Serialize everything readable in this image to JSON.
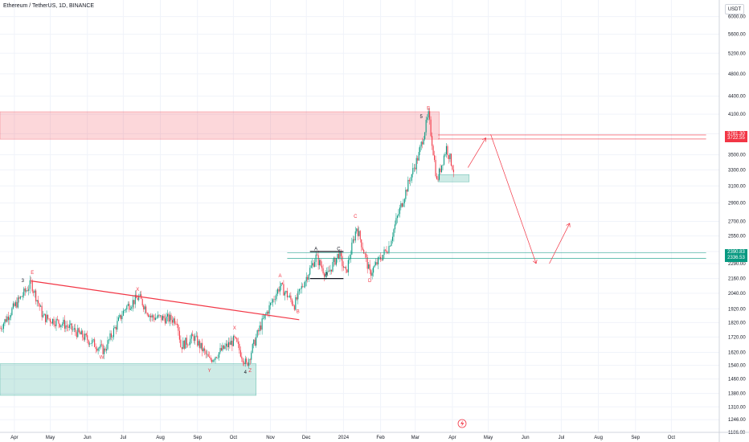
{
  "header": {
    "title": "Ethereum / TetherUS, 1D, BINANCE",
    "unit_label": "USDT"
  },
  "chart_data": {
    "type": "candlestick",
    "title": "Ethereum / TetherUS, 1D, BINANCE",
    "y_scale": "log",
    "ylim": [
      1186,
      6400
    ],
    "price_ticks": [
      "6000.00",
      "5600.00",
      "5200.00",
      "4800.00",
      "4400.00",
      "4100.00",
      "3800.00",
      "3500.00",
      "3300.00",
      "3100.00",
      "2900.00",
      "2700.00",
      "2550.00",
      "2400.00",
      "2290.00",
      "2160.00",
      "2040.00",
      "1920.00",
      "1820.00",
      "1720.00",
      "1620.00",
      "1540.00",
      "1460.00",
      "1380.00",
      "1310.00",
      "1246.00",
      "1186.00"
    ],
    "x_ticks": [
      {
        "label": "Apr",
        "date": "2023-04-01"
      },
      {
        "label": "May",
        "date": "2023-05-01"
      },
      {
        "label": "Jun",
        "date": "2023-06-01"
      },
      {
        "label": "Jul",
        "date": "2023-07-01"
      },
      {
        "label": "Aug",
        "date": "2023-08-01"
      },
      {
        "label": "Sep",
        "date": "2023-09-01"
      },
      {
        "label": "Oct",
        "date": "2023-10-01"
      },
      {
        "label": "Nov",
        "date": "2023-11-01"
      },
      {
        "label": "Dec",
        "date": "2023-12-01"
      },
      {
        "label": "2024",
        "date": "2024-01-01"
      },
      {
        "label": "Feb",
        "date": "2024-02-01"
      },
      {
        "label": "Mar",
        "date": "2024-03-01"
      },
      {
        "label": "Apr",
        "date": "2024-04-01"
      },
      {
        "label": "May",
        "date": "2024-05-01"
      },
      {
        "label": "Jun",
        "date": "2024-06-01"
      },
      {
        "label": "Jul",
        "date": "2024-07-01"
      },
      {
        "label": "Aug",
        "date": "2024-08-01"
      },
      {
        "label": "Sep",
        "date": "2024-09-01"
      },
      {
        "label": "Oct",
        "date": "2024-10-01"
      }
    ],
    "series": [
      {
        "key_points": [
          {
            "date": "2023-03-20",
            "price": 1780
          },
          {
            "date": "2023-04-15",
            "price": 2120
          },
          {
            "date": "2023-04-25",
            "price": 1860
          },
          {
            "date": "2023-05-12",
            "price": 1810
          },
          {
            "date": "2023-06-15",
            "price": 1630
          },
          {
            "date": "2023-07-03",
            "price": 1930
          },
          {
            "date": "2023-07-14",
            "price": 2010
          },
          {
            "date": "2023-07-24",
            "price": 1860
          },
          {
            "date": "2023-08-15",
            "price": 1840
          },
          {
            "date": "2023-08-18",
            "price": 1660
          },
          {
            "date": "2023-08-29",
            "price": 1720
          },
          {
            "date": "2023-09-11",
            "price": 1570
          },
          {
            "date": "2023-10-02",
            "price": 1700
          },
          {
            "date": "2023-10-12",
            "price": 1540
          },
          {
            "date": "2023-10-23",
            "price": 1780
          },
          {
            "date": "2023-11-09",
            "price": 2100
          },
          {
            "date": "2023-11-21",
            "price": 1950
          },
          {
            "date": "2023-12-09",
            "price": 2350
          },
          {
            "date": "2023-12-18",
            "price": 2180
          },
          {
            "date": "2023-12-28",
            "price": 2380
          },
          {
            "date": "2024-01-03",
            "price": 2200
          },
          {
            "date": "2024-01-12",
            "price": 2640
          },
          {
            "date": "2024-01-23",
            "price": 2200
          },
          {
            "date": "2024-02-08",
            "price": 2450
          },
          {
            "date": "2024-02-20",
            "price": 2950
          },
          {
            "date": "2024-03-04",
            "price": 3500
          },
          {
            "date": "2024-03-12",
            "price": 4080
          },
          {
            "date": "2024-03-19",
            "price": 3150
          },
          {
            "date": "2024-03-27",
            "price": 3600
          },
          {
            "date": "2024-04-02",
            "price": 3300
          }
        ]
      }
    ],
    "current_prices": [
      {
        "label": "3781.30",
        "value": 3781.3,
        "color": "#f23645"
      },
      {
        "label": "3722.55",
        "value": 3722.55,
        "color": "#f23645"
      },
      {
        "label": "2390.83",
        "value": 2390.83,
        "color": "#089981"
      },
      {
        "label": "2336.53",
        "value": 2336.53,
        "color": "#089981"
      }
    ],
    "zones": [
      {
        "kind": "supply",
        "start": "2023-03-20",
        "end": "2024-03-21",
        "low": 3720,
        "high": 4140,
        "color": "#f23645"
      },
      {
        "kind": "demand",
        "start": "2023-03-20",
        "end": "2023-10-20",
        "low": 1370,
        "high": 1550,
        "color": "#089981"
      },
      {
        "kind": "demand",
        "start": "2024-03-20",
        "end": "2024-04-15",
        "low": 3150,
        "high": 3240,
        "color": "#089981"
      }
    ],
    "trendline": {
      "from": {
        "date": "2023-04-15",
        "price": 2140
      },
      "to": {
        "date": "2023-11-25",
        "price": 1840
      },
      "color": "#f23645"
    },
    "hlines": [
      {
        "start": "2024-03-20",
        "end": "2024-10-30",
        "price": 3781.3,
        "color": "#f23645"
      },
      {
        "start": "2024-03-20",
        "end": "2024-10-30",
        "price": 3722.55,
        "color": "#f23645"
      },
      {
        "start": "2023-11-15",
        "end": "2024-10-30",
        "price": 2390.83,
        "color": "#089981"
      },
      {
        "start": "2023-11-15",
        "end": "2024-10-30",
        "price": 2336.53,
        "color": "#089981"
      }
    ],
    "channel": [
      {
        "from": {
          "date": "2023-12-04",
          "price": 2400
        },
        "to": {
          "date": "2024-01-01",
          "price": 2400
        }
      },
      {
        "from": {
          "date": "2023-12-04",
          "price": 2160
        },
        "to": {
          "date": "2024-01-01",
          "price": 2160
        }
      }
    ],
    "projection": [
      {
        "date": "2024-04-14",
        "price": 3330
      },
      {
        "date": "2024-04-29",
        "price": 3740
      },
      {
        "date": "2024-05-03",
        "price": 3790
      },
      {
        "date": "2024-06-10",
        "price": 2290
      },
      {
        "date": "2024-06-21",
        "price": 2290
      },
      {
        "date": "2024-07-08",
        "price": 2680
      }
    ],
    "wave_labels": [
      {
        "text": "E",
        "date": "2023-04-16",
        "price": 2200,
        "color": "#f23645"
      },
      {
        "text": "3",
        "date": "2023-04-08",
        "price": 2130,
        "color": "#131722"
      },
      {
        "text": "W",
        "date": "2023-06-13",
        "price": 1580,
        "color": "#f23645"
      },
      {
        "text": "X",
        "date": "2023-07-13",
        "price": 2060,
        "color": "#f23645"
      },
      {
        "text": "Y",
        "date": "2023-09-11",
        "price": 1500,
        "color": "#f23645"
      },
      {
        "text": "X",
        "date": "2023-10-02",
        "price": 1770,
        "color": "#f23645"
      },
      {
        "text": "Z",
        "date": "2023-10-15",
        "price": 1500,
        "color": "#f23645"
      },
      {
        "text": "4",
        "date": "2023-10-11",
        "price": 1490,
        "color": "#131722"
      },
      {
        "text": "A",
        "date": "2023-11-09",
        "price": 2170,
        "color": "#f23645"
      },
      {
        "text": "B",
        "date": "2023-11-24",
        "price": 1890,
        "color": "#f23645"
      },
      {
        "text": "C",
        "date": "2024-01-11",
        "price": 2740,
        "color": "#f23645"
      },
      {
        "text": "D",
        "date": "2024-01-23",
        "price": 2130,
        "color": "#f23645"
      },
      {
        "text": "A",
        "date": "2023-12-09",
        "price": 2410,
        "color": "#131722"
      },
      {
        "text": "B",
        "date": "2023-12-18",
        "price": 2180,
        "color": "#131722"
      },
      {
        "text": "C",
        "date": "2023-12-28",
        "price": 2410,
        "color": "#131722"
      },
      {
        "text": "5",
        "date": "2024-03-06",
        "price": 4040,
        "color": "#131722"
      },
      {
        "text": "E",
        "date": "2024-03-12",
        "price": 4170,
        "color": "#f23645"
      }
    ],
    "colors": {
      "up": "#089981",
      "down": "#f23645",
      "grid": "#f0f3fa",
      "axis_text": "#131722"
    },
    "grid": true
  },
  "footer": {
    "icon": "lightning-icon"
  }
}
